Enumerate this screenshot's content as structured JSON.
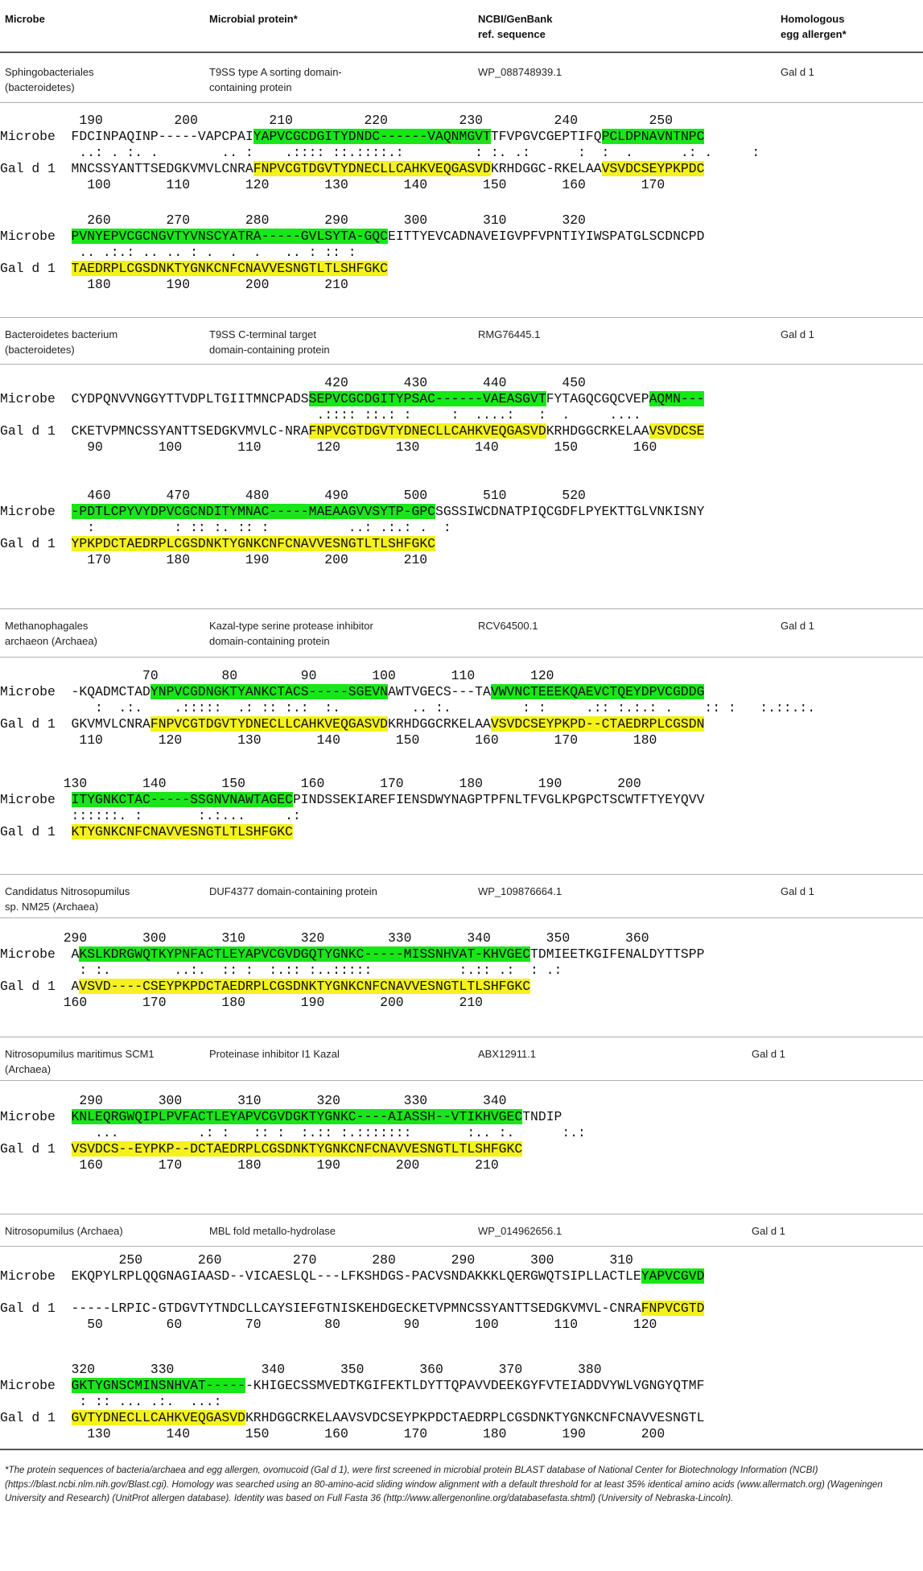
{
  "header": {
    "col_microbe": "Microbe",
    "col_protein": "Microbial protein*",
    "col_ref": "NCBI/GenBank\nref. sequence",
    "col_allergen": "Homologous\negg allergen*"
  },
  "colors": {
    "microbe_highlight": "#19e619",
    "allergen_highlight": "#f4f21a"
  },
  "entries": [
    {
      "microbe": "Sphingobacteriales\n(bacteroidetes)",
      "protein": "T9SS type A sorting domain-\ncontaining protein",
      "ref": "WP_088748939.1",
      "allergen": "Gal d 1",
      "blocks": [
        [
          [
            "          190         200         210         220         230         240         250"
          ],
          [
            "Microbe  FDCINPAQINP-----VAPCPAI",
            {
              "t": "YAPVCGCDGITYDNDC------VAQNMGVT",
              "h": "g"
            },
            "TFVPGVCGEPTIFQ",
            {
              "t": "PCLDPNAVNTNPC",
              "h": "g"
            }
          ],
          [
            "          ..: . :. .        .. :    .:::: ::.::::.:         : :. .:      :  :  .      .: .     :"
          ],
          [
            "Gal d 1  MNCSSYANTTSEDGKVMVLCNRA",
            {
              "t": "FNPVCGTDGVTYDNECLLCAHKVEQGASVD",
              "h": "y"
            },
            "KRHDGGC-RKELAA",
            {
              "t": "VSVDCSEYPKPDC",
              "h": "y"
            }
          ],
          [
            "           100       110       120       130       140       150       160       170"
          ]
        ],
        [
          [
            "           260       270       280       290       300       310       320"
          ],
          [
            "Microbe  ",
            {
              "t": "PVNYEPVCGCNGVTYVNSCYATRA-----GVLSYTA-GQC",
              "h": "g"
            },
            "EITTYEVCADNAVEIGVPFVPNTIYIWSPATGLSCDNCPD"
          ],
          [
            "          .. .:.: .. .. : .  .  .   .. : :: :"
          ],
          [
            "Gal d 1  ",
            {
              "t": "TAEDRPLCGSDNKTYGNKCNFCNAVVESNGTLTLSHFGKC",
              "h": "y"
            }
          ],
          [
            "           180       190       200       210"
          ]
        ]
      ]
    },
    {
      "microbe": "Bacteroidetes bacterium\n(bacteroidetes)",
      "protein": "T9SS C-terminal target\ndomain-containing protein",
      "ref": "RMG76445.1",
      "allergen": "Gal d 1",
      "blocks": [
        [
          [
            "                                         420       430       440       450"
          ],
          [
            "Microbe  CYDPQNVVNGGYTTVDPLTGIITMNCPADS",
            {
              "t": "SEPVCGCDGITYPSAC------VAEASGVT",
              "h": "g"
            },
            "FYTAGQCGQCVEP",
            {
              "t": "AQMN---",
              "h": "g"
            }
          ],
          [
            "                                        .:::: ::.: :     :  ....:   :  .     ...."
          ],
          [
            "Gal d 1  CKETVPMNCSSYANTTSEDGKVMVLC-NRA",
            {
              "t": "FNPVCGTDGVTYDNECLLCAHKVEQGASVD",
              "h": "y"
            },
            "KRHDGGCRKELAA",
            {
              "t": "VSVDCSE",
              "h": "y"
            }
          ],
          [
            "           90       100       110       120       130       140       150       160"
          ]
        ],
        [
          [
            "           460       470       480       490       500       510       520"
          ],
          [
            "Microbe  ",
            {
              "t": "-PDTLCPYVYDPVCGCNDITYMNAC-----MAEAAGVVSYTP-GPC",
              "h": "g"
            },
            "SGSSIWCDNATPIQCGDFLPYEKTTGLVNKISNY"
          ],
          [
            "           :          : :: :. :: :          ..: .:.: .  :"
          ],
          [
            "Gal d 1  ",
            {
              "t": "YPKPDCTAEDRPLCGSDNKTYGNKCNFCNAVVESNGTLTLSHFGKC",
              "h": "y"
            }
          ],
          [
            "           170       180       190       200       210"
          ]
        ]
      ]
    },
    {
      "microbe": "Methanophagales\narchaeon (Archaea)",
      "protein": "Kazal-type serine protease inhibitor\ndomain-containing protein",
      "ref": "RCV64500.1",
      "allergen": "Gal d 1",
      "blocks": [
        [
          [
            "                  70        80        90       100       110       120"
          ],
          [
            "Microbe  -KQADMCTAD",
            {
              "t": "YNPVCGDNGKTYANKCTACS-----SGEVN",
              "h": "g"
            },
            "AWTVGECS---TA",
            {
              "t": "VWVNCTEEEKQAEVCTQEYDPVCGDDG",
              "h": "g"
            }
          ],
          [
            "            :  .:.    .:::::  .: :: :.:  :.         .. :.         : :     .:: :.:.: .    :: :   :.::.:."
          ],
          [
            "Gal d 1  GKVMVLCNRA",
            {
              "t": "FNPVCGTDGVTYDNECLLCAHKVEQGASVD",
              "h": "y"
            },
            "KRHDGGCRKELAA",
            {
              "t": "VSVDCSEYPKPD--CTAEDRPLCGSDN",
              "h": "y"
            }
          ],
          [
            "          110       120       130       140       150       160       170       180"
          ]
        ],
        [
          [
            "        130       140       150       160       170       180       190       200"
          ],
          [
            "Microbe  ",
            {
              "t": "ITYGNKCTAC-----SSGNVNAWTAGEC",
              "h": "g"
            },
            "PINDSSEKIAREFIENSDWYNAGPTPFNLTFVGLKPGPCTSCWTFTYEYQVV"
          ],
          [
            "         ::::::. :       :.:...     .:"
          ],
          [
            "Gal d 1  ",
            {
              "t": "KTYGNKCNFCNAVVESNGTLTLSHFGKC",
              "h": "y"
            }
          ]
        ]
      ]
    },
    {
      "microbe": "Candidatus Nitrosopumilus\nsp. NM25 (Archaea)",
      "protein": "DUF4377 domain-containing protein",
      "ref": "WP_109876664.1",
      "allergen": "Gal d 1",
      "blocks": [
        [
          [
            "        290       300       310       320        330       340       350       360"
          ],
          [
            "Microbe  A",
            {
              "t": "KSLKDRGWQTKYPNFACTLEYAPVCGVDGQTYGNKC-----MISSNHVAT-KHVGEC",
              "h": "g"
            },
            "TDMIEETKGIFENALDYTTSPP"
          ],
          [
            "          : :.        ..:.  :: :  :.:: :..:::::           :.:: .:  : .:"
          ],
          [
            "Gal d 1  A",
            {
              "t": "VSVD----CSEYPKPDCTAEDRPLCGSDNKTYGNKCNFCNAVVESNGTLTLSHFGKC",
              "h": "y"
            }
          ],
          [
            "        160       170       180       190       200       210"
          ]
        ]
      ]
    },
    {
      "microbe": "Nitrosopumilus maritimus SCM1\n(Archaea)",
      "protein": "Proteinase inhibitor I1 Kazal",
      "ref": "ABX12911.1",
      "allergen": "Gal d 1",
      "blocks": [
        [
          [
            "          290       300       310       320        330       340"
          ],
          [
            "Microbe  ",
            {
              "t": "KNLEQRGWQIPLPVFACTLEYAPVCGVDGKTYGNKC----AIASSH--VTIKHVGEC",
              "h": "g"
            },
            "TNDIP"
          ],
          [
            "            ...          .: :   :: :  :.:: :.:::::::       :.. :.      :.:"
          ],
          [
            "Gal d 1  ",
            {
              "t": "VSVDCS--EYPKP--DCTAEDRPLCGSDNKTYGNKCNFCNAVVESNGTLTLSHFGKC",
              "h": "y"
            }
          ],
          [
            "          160       170       180       190       200       210"
          ]
        ]
      ]
    },
    {
      "microbe": "Nitrosopumilus (Archaea)",
      "protein": "MBL fold metallo-hydrolase",
      "ref": "WP_014962656.1",
      "allergen": "Gal d 1",
      "blocks": [
        [
          [
            "               250       260         270       280       290       300       310"
          ],
          [
            "Microbe  EKQPYLRPLQQGNAGIAASD--VICAESLQL---LFKSHDGS-PACVSNDAKKKLQERGWQTSIPLLACTLE",
            {
              "t": "YAPVCGVD",
              "h": "g"
            }
          ],
          [
            ""
          ],
          [
            "Gal d 1  -----LRPIC-GTDGVTYTNDCLLCAYSIEFGTNISKEHDGECKETVPMNCSSYANTTSEDGKVMVL-CNRA",
            {
              "t": "FNPVCGTD",
              "h": "y"
            }
          ],
          [
            "           50        60        70        80        90       100       110       120"
          ]
        ],
        [
          [
            "         320       330           340       350       360       370       380"
          ],
          [
            "Microbe  ",
            {
              "t": "GKTYGNSCMINSNHVAT-----",
              "h": "g"
            },
            "-KHIGECSSMVEDTKGIFEKTLDYTTQPAVVDEEKGYFVTEIADDVYWLVGNGYQTMF"
          ],
          [
            "          : :: ... .:.  ...:"
          ],
          [
            "Gal d 1  ",
            {
              "t": "GVTYDNECLLCAHKVEQGASVD",
              "h": "y"
            },
            "KRHDGGCRKELAAVSVDCSEYPKPDCTAEDRPLCGSDNKTYGNKCNFCNAVVESNGTL"
          ],
          [
            "           130       140       150       160       170       180       190       200"
          ]
        ]
      ]
    }
  ],
  "footnote": "*The protein sequences of bacteria/archaea and egg allergen, ovomucoid (Gal d 1), were first screened in microbial protein BLAST database of National Center for Biotechnology Information (NCBI) (https://blast.ncbi.nlm.nih.gov/Blast.cgi). Homology was searched using an 80-amino-acid sliding window alignment with a default threshold for at least 35% identical amino acids (www.allermatch.org) (Wageningen University and Research) (UnitProt allergen database). Identity was based on Full Fasta 36 (http://www.allergenonline.org/databasefasta.shtml) (University of Nebraska-Lincoln)."
}
